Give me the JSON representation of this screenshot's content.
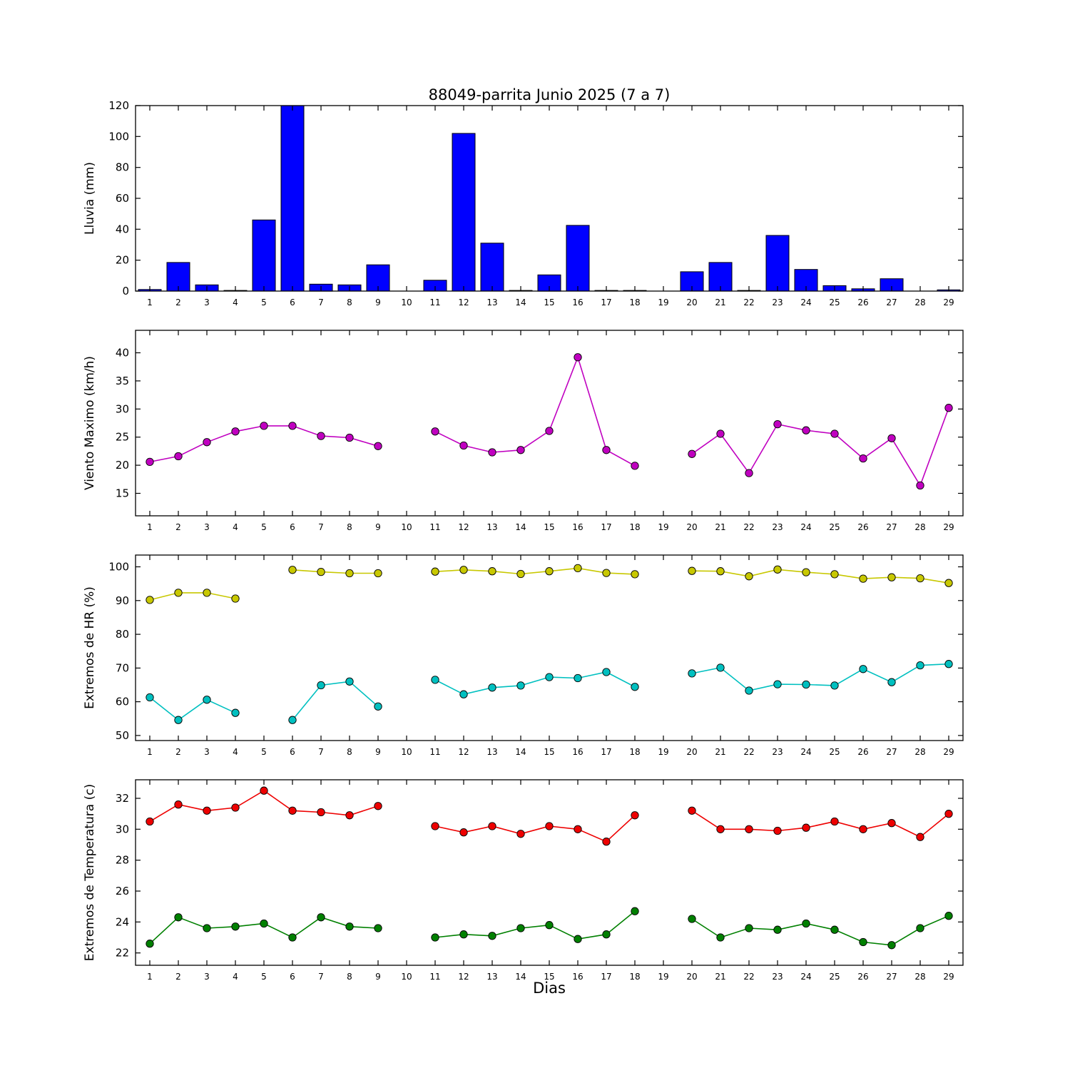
{
  "title": "88049-parrita Junio 2025  (7 a 7)",
  "xlabel": "Dias",
  "days": [
    1,
    2,
    3,
    4,
    5,
    6,
    7,
    8,
    9,
    10,
    11,
    12,
    13,
    14,
    15,
    16,
    17,
    18,
    19,
    20,
    21,
    22,
    23,
    24,
    25,
    26,
    27,
    28,
    29
  ],
  "xticks": [
    1,
    2,
    3,
    4,
    5,
    6,
    7,
    8,
    9,
    10,
    11,
    12,
    13,
    14,
    15,
    16,
    17,
    18,
    19,
    20,
    21,
    22,
    23,
    24,
    25,
    26,
    27,
    28,
    29
  ],
  "xlim": [
    0.5,
    29.5
  ],
  "chart_data": [
    {
      "type": "bar",
      "name": "lluvia",
      "ylabel": "Lluvia (mm)",
      "color": "#0000ff",
      "ylim": [
        0,
        120
      ],
      "yticks": [
        0,
        20,
        40,
        60,
        80,
        100,
        120
      ],
      "values": [
        1.0,
        18.5,
        4.0,
        0.4,
        46.0,
        120.0,
        4.5,
        4.0,
        17.0,
        0.0,
        7.0,
        102.0,
        31.0,
        0.4,
        10.5,
        42.5,
        0.4,
        0.4,
        0.0,
        12.5,
        18.5,
        0.4,
        36.0,
        14.0,
        3.5,
        1.5,
        8.0,
        0.0,
        0.8
      ]
    },
    {
      "type": "line",
      "name": "viento",
      "ylabel": "Viento Maximo (km/h)",
      "ylim": [
        11,
        44
      ],
      "yticks": [
        15,
        20,
        25,
        30,
        35,
        40
      ],
      "series": [
        {
          "name": "viento-maximo",
          "color": "#c000c0",
          "values": [
            20.6,
            21.6,
            24.1,
            26.0,
            27.0,
            27.0,
            25.2,
            24.9,
            23.4,
            null,
            26.0,
            23.5,
            22.3,
            22.7,
            26.1,
            39.2,
            22.7,
            19.9,
            null,
            22.0,
            25.6,
            18.6,
            27.3,
            26.2,
            25.6,
            21.2,
            24.8,
            16.4,
            30.2
          ]
        }
      ]
    },
    {
      "type": "line",
      "name": "hr",
      "ylabel": "Extremos de HR (%)",
      "ylim": [
        48.5,
        103.5
      ],
      "yticks": [
        50,
        60,
        70,
        80,
        90,
        100
      ],
      "series": [
        {
          "name": "hr-maxima",
          "color": "#c8c800",
          "values": [
            90.2,
            92.3,
            92.3,
            90.6,
            null,
            99.1,
            98.5,
            98.1,
            98.1,
            null,
            98.6,
            99.1,
            98.7,
            97.9,
            98.7,
            99.6,
            98.2,
            97.8,
            null,
            98.8,
            98.7,
            97.2,
            99.2,
            98.4,
            97.8,
            96.5,
            96.9,
            96.6,
            95.2
          ]
        },
        {
          "name": "hr-minima",
          "color": "#00c0c0",
          "values": [
            61.3,
            54.6,
            60.6,
            56.7,
            null,
            54.6,
            64.9,
            66.0,
            58.6,
            null,
            66.5,
            62.2,
            64.2,
            64.8,
            67.3,
            67.0,
            68.8,
            64.4,
            null,
            68.4,
            70.1,
            63.3,
            65.2,
            65.1,
            64.8,
            69.7,
            65.8,
            70.8,
            71.2
          ]
        }
      ]
    },
    {
      "type": "line",
      "name": "temperatura",
      "ylabel": "Extremos de Temperatura (c)",
      "ylim": [
        21.2,
        33.2
      ],
      "yticks": [
        22,
        24,
        26,
        28,
        30,
        32
      ],
      "series": [
        {
          "name": "temperatura-maxima",
          "color": "#ee0000",
          "values": [
            30.5,
            31.6,
            31.2,
            31.4,
            32.5,
            31.2,
            31.1,
            30.9,
            31.5,
            null,
            30.2,
            29.8,
            30.2,
            29.7,
            30.2,
            30.0,
            29.2,
            30.9,
            null,
            31.2,
            30.0,
            30.0,
            29.9,
            30.1,
            30.5,
            30.0,
            30.4,
            29.5,
            31.0
          ]
        },
        {
          "name": "temperatura-minima",
          "color": "#008000",
          "values": [
            22.6,
            24.3,
            23.6,
            23.7,
            23.9,
            23.0,
            24.3,
            23.7,
            23.6,
            null,
            23.0,
            23.2,
            23.1,
            23.6,
            23.8,
            22.9,
            23.2,
            24.7,
            null,
            24.2,
            23.0,
            23.6,
            23.5,
            23.9,
            23.5,
            22.7,
            22.5,
            23.6,
            24.4
          ]
        }
      ]
    }
  ]
}
